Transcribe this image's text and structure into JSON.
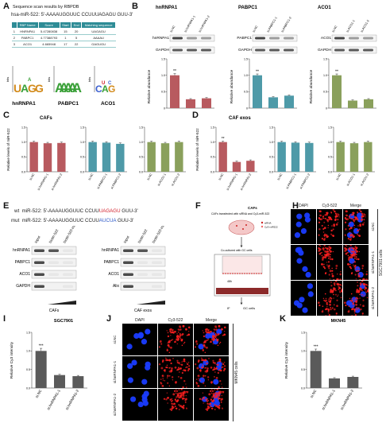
{
  "panelA": {
    "label": "A",
    "title": "Sequence scan results by RBPDB",
    "seq": "hsa-miR-522: 5'-AAAAUGGUUC CCUUUAGAGU GUU-3'",
    "headers": [
      "RBP Name",
      "Score",
      "Start",
      "End",
      "Matching sequence"
    ],
    "rows": [
      [
        "1",
        "HNRNPA1",
        "5.47280838",
        "15",
        "20",
        "UAGAGU"
      ],
      [
        "2",
        "PABPC1",
        "4.77388793",
        "1",
        "5",
        "AAAAU"
      ],
      [
        "3",
        "ACO1",
        "4.665948",
        "17",
        "22",
        "GAGUGU"
      ]
    ],
    "logos": [
      "hnRNPA1",
      "PABPC1",
      "ACO1"
    ],
    "logo_ylabel": "bits"
  },
  "panelB": {
    "label": "B",
    "groups": [
      {
        "title": "hnRNPA1",
        "protein": "hnRNPA1",
        "lanes": [
          "si.NC",
          "si.hnRNPA1-1",
          "si.hnRNPA1-2"
        ],
        "values": [
          1.0,
          0.27,
          0.3
        ],
        "errors": [
          0.05,
          0.02,
          0.02
        ],
        "color": "#b85a5f",
        "star": "**"
      },
      {
        "title": "PABPC1",
        "protein": "PABPC1",
        "lanes": [
          "si.NC",
          "si.PABPC1-1",
          "si.PABPC1-2"
        ],
        "values": [
          1.0,
          0.33,
          0.38
        ],
        "errors": [
          0.04,
          0.02,
          0.02
        ],
        "color": "#4e9aa8",
        "star": "**"
      },
      {
        "title": "ACO1",
        "protein": "ACO1",
        "lanes": [
          "si.NC",
          "si.ACO1-1",
          "si.ACO1-2"
        ],
        "values": [
          1.0,
          0.23,
          0.27
        ],
        "errors": [
          0.04,
          0.02,
          0.02
        ],
        "color": "#8aa05c",
        "star": "**"
      }
    ],
    "loading": "GAPDH",
    "ylabel": "Relative abundance",
    "ylim": [
      0,
      1.5
    ],
    "ticks": [
      "0",
      "0.5",
      "1.0",
      "1.5"
    ]
  },
  "panelC": {
    "label": "C",
    "title": "CAFs",
    "ylabel": "Relative levels of miR-522",
    "ylim": [
      0,
      1.5
    ],
    "ticks": [
      "0.0",
      "0.5",
      "1.0",
      "1.5"
    ],
    "groups": [
      {
        "lanes": [
          "si.NC",
          "si.hnRNPA1-1",
          "si.hnRNPA1-2"
        ],
        "values": [
          1.0,
          0.96,
          0.97
        ],
        "color": "#b85a5f"
      },
      {
        "lanes": [
          "si.NC",
          "si.PABPC1-1",
          "si.PABPC1-2"
        ],
        "values": [
          1.0,
          0.98,
          0.94
        ],
        "color": "#4e9aa8"
      },
      {
        "lanes": [
          "si.NC",
          "si.ACO1-1",
          "si.ACO1-2"
        ],
        "values": [
          1.0,
          0.96,
          1.0
        ],
        "color": "#8aa05c"
      }
    ]
  },
  "panelD": {
    "label": "D",
    "title": "CAF exos",
    "ylabel": "Relative levels of miR-522",
    "ylim": [
      0,
      1.5
    ],
    "ticks": [
      "0.0",
      "0.5",
      "1.0",
      "1.5"
    ],
    "groups": [
      {
        "lanes": [
          "si.NC",
          "si.hnRNPA1-1",
          "si.hnRNPA1-2"
        ],
        "values": [
          1.0,
          0.33,
          0.37
        ],
        "color": "#b85a5f",
        "star": "**"
      },
      {
        "lanes": [
          "si.NC",
          "si.PABPC1-1",
          "si.PABPC1-2"
        ],
        "values": [
          1.0,
          0.98,
          0.97
        ],
        "color": "#4e9aa8"
      },
      {
        "lanes": [
          "si.NC",
          "si.ACO1-1",
          "si.ACO1-2"
        ],
        "values": [
          1.0,
          0.96,
          1.0
        ],
        "color": "#8aa05c"
      }
    ]
  },
  "panelE": {
    "label": "E",
    "wt_prefix": "wt",
    "wt_seq_a": "miR-522: 5'-AAAAUGGUUC CCUU",
    "wt_seq_red": "UAGAGU",
    "wt_seq_b": " GUU-3'",
    "mut_prefix": "mut",
    "mut_seq_a": "miR-522: 5'-AAAAUGGUUC CCUU",
    "mut_seq_blue": "AUCUA",
    "mut_seq_b": " GUU-3'",
    "lanes": [
      "input",
      "biotin 522",
      "biotin 522-mut"
    ],
    "caf_rows": [
      "hnRNPA1",
      "PABPC1",
      "ACO1",
      "GAPDH"
    ],
    "exo_rows": [
      "hnRNPA1",
      "PABPC1",
      "ACO1",
      "Alix"
    ],
    "caf_label": "CAFs",
    "exo_label": "CAF exos"
  },
  "panelF": {
    "label": "F",
    "cafs": "CAFs",
    "transfected": "CAFs transfected with siRNA and Cy3-miR-522",
    "legend_1": "siRNA",
    "legend_2": "Cy3-miR522",
    "cocult": "Co-cultured with GC cells",
    "time": "48h",
    "if": "IF",
    "gc": "GC cells"
  },
  "panelH": {
    "label": "H",
    "cols": [
      "DAPI",
      "Cy3-522",
      "Merge"
    ],
    "rows": [
      "si.NC",
      "si.hnRNPA1-1",
      "si.hnRNPA1-2"
    ],
    "cell_line": "SGC7901 cells"
  },
  "panelI": {
    "label": "I",
    "title": "SGC7901",
    "ylabel": "Relative Cy3 intensity",
    "categories": [
      "si.NC",
      "si.hnRNPA1-1",
      "si.hnRNPA1-2"
    ],
    "values": [
      1.0,
      0.35,
      0.32
    ],
    "errors": [
      0.07,
      0.02,
      0.02
    ],
    "star": "***",
    "ticks": [
      "0.0",
      "0.5",
      "1.0",
      "1.5"
    ],
    "ylim": [
      0,
      1.5
    ]
  },
  "panelJ": {
    "label": "J",
    "cols": [
      "DAPI",
      "Cy3-522",
      "Merge"
    ],
    "rows": [
      "si.NC",
      "si.hnRNPA1-1",
      "si.hnRNPA1-2"
    ],
    "cell_line": "MKN45 cells"
  },
  "panelK": {
    "label": "K",
    "title": "MKN45",
    "ylabel": "Relative Cy3 intensity",
    "categories": [
      "si.NC",
      "si.hnRNPA1-1",
      "si.hnRNPA1-2"
    ],
    "values": [
      1.0,
      0.26,
      0.3
    ],
    "errors": [
      0.05,
      0.02,
      0.02
    ],
    "star": "***",
    "ticks": [
      "0.0",
      "0.5",
      "1.0",
      "1.5"
    ],
    "ylim": [
      0,
      1.5
    ]
  },
  "chart_data": [
    {
      "type": "bar",
      "title": "",
      "ylabel": "Relative abundance",
      "categories": [
        "si.NC",
        "si.hnRNPA1-1",
        "si.hnRNPA1-2"
      ],
      "values": [
        1.0,
        0.27,
        0.3
      ],
      "ylim": [
        0,
        1.5
      ]
    },
    {
      "type": "bar",
      "title": "",
      "ylabel": "Relative abundance",
      "categories": [
        "si.NC",
        "si.PABPC1-1",
        "si.PABPC1-2"
      ],
      "values": [
        1.0,
        0.33,
        0.38
      ],
      "ylim": [
        0,
        1.5
      ]
    },
    {
      "type": "bar",
      "title": "",
      "ylabel": "Relative abundance",
      "categories": [
        "si.NC",
        "si.ACO1-1",
        "si.ACO1-2"
      ],
      "values": [
        1.0,
        0.23,
        0.27
      ],
      "ylim": [
        0,
        1.5
      ]
    },
    {
      "type": "bar",
      "title": "CAFs",
      "ylabel": "Relative levels of miR-522",
      "categories": [
        "si.NC",
        "si.hnRNPA1-1",
        "si.hnRNPA1-2",
        "si.NC",
        "si.PABPC1-1",
        "si.PABPC1-2",
        "si.NC",
        "si.ACO1-1",
        "si.ACO1-2"
      ],
      "values": [
        1.0,
        0.96,
        0.97,
        1.0,
        0.98,
        0.94,
        1.0,
        0.96,
        1.0
      ],
      "ylim": [
        0,
        1.5
      ]
    },
    {
      "type": "bar",
      "title": "CAF exos",
      "ylabel": "Relative levels of miR-522",
      "categories": [
        "si.NC",
        "si.hnRNPA1-1",
        "si.hnRNPA1-2",
        "si.NC",
        "si.PABPC1-1",
        "si.PABPC1-2",
        "si.NC",
        "si.ACO1-1",
        "si.ACO1-2"
      ],
      "values": [
        1.0,
        0.33,
        0.37,
        1.0,
        0.98,
        0.97,
        1.0,
        0.96,
        1.0
      ],
      "ylim": [
        0,
        1.5
      ]
    },
    {
      "type": "bar",
      "title": "SGC7901",
      "ylabel": "Relative Cy3 intensity",
      "categories": [
        "si.NC",
        "si.hnRNPA1-1",
        "si.hnRNPA1-2"
      ],
      "values": [
        1.0,
        0.35,
        0.32
      ],
      "ylim": [
        0,
        1.5
      ]
    },
    {
      "type": "bar",
      "title": "MKN45",
      "ylabel": "Relative Cy3 intensity",
      "categories": [
        "si.NC",
        "si.hnRNPA1-1",
        "si.hnRNPA1-2"
      ],
      "values": [
        1.0,
        0.26,
        0.3
      ],
      "ylim": [
        0,
        1.5
      ]
    }
  ]
}
